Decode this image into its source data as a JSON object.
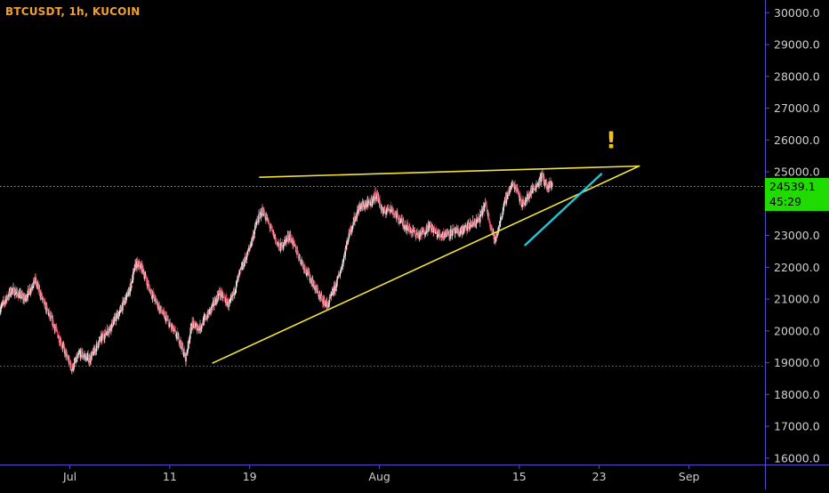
{
  "header": {
    "symbol": "BTCUSDT, 1h, KUCOIN"
  },
  "colors": {
    "background": "#000000",
    "axis": "#5b49c9",
    "candle_up": "#e8e8e8",
    "candle_down": "#e0475a",
    "trendline": "#f2e33a",
    "trendline_steep": "#25c5d9",
    "resistance_dotted": "#35d335",
    "support_dotted": "#c93acb",
    "alert": "#f2c21b",
    "price_tag_bg": "#1fdb00"
  },
  "price_tag": {
    "price": "24539.1",
    "countdown": "45:29"
  },
  "annotation": {
    "alert_mark": "!"
  },
  "chart_data": {
    "type": "candlestick",
    "title": "BTCUSDT, 1h, KUCOIN",
    "timeframe": "1h",
    "ylim": [
      15800,
      30400
    ],
    "y_ticks": [
      "30000.0",
      "29000.0",
      "28000.0",
      "27000.0",
      "26000.0",
      "25000.0",
      "24000.0",
      "23000.0",
      "22000.0",
      "21000.0",
      "20000.0",
      "19000.0",
      "18000.0",
      "17000.0",
      "16000.0"
    ],
    "y_tick_values": [
      30000,
      29000,
      28000,
      27000,
      26000,
      25000,
      24000,
      23000,
      22000,
      21000,
      20000,
      19000,
      18000,
      17000,
      16000
    ],
    "x_ticks": [
      "Jul",
      "11",
      "19",
      "Aug",
      "15",
      "23",
      "Sep"
    ],
    "x_tick_days": [
      1,
      11,
      19,
      32,
      46,
      54,
      63
    ],
    "x_range_days": [
      -6.0,
      70.6
    ],
    "price_path": [
      [
        -6,
        20700
      ],
      [
        -4.8,
        21300
      ],
      [
        -3.5,
        21000
      ],
      [
        -2.5,
        21600
      ],
      [
        -1.5,
        20800
      ],
      [
        -0.5,
        20100
      ],
      [
        0.3,
        19500
      ],
      [
        1.2,
        18800
      ],
      [
        2.0,
        19300
      ],
      [
        3.0,
        19100
      ],
      [
        4.0,
        19700
      ],
      [
        5.0,
        20100
      ],
      [
        6.0,
        20600
      ],
      [
        7.0,
        21300
      ],
      [
        7.6,
        22100
      ],
      [
        8.2,
        22000
      ],
      [
        9.0,
        21300
      ],
      [
        10.0,
        20700
      ],
      [
        11.0,
        20200
      ],
      [
        12.0,
        19700
      ],
      [
        12.6,
        19150
      ],
      [
        13.2,
        20200
      ],
      [
        14.0,
        20100
      ],
      [
        15.0,
        20600
      ],
      [
        16.0,
        21200
      ],
      [
        17.0,
        20800
      ],
      [
        18.0,
        21800
      ],
      [
        19.0,
        22600
      ],
      [
        19.7,
        23400
      ],
      [
        20.3,
        23800
      ],
      [
        21.0,
        23300
      ],
      [
        22.0,
        22600
      ],
      [
        23.0,
        23000
      ],
      [
        24.0,
        22300
      ],
      [
        25.0,
        21700
      ],
      [
        26.0,
        21100
      ],
      [
        26.8,
        20800
      ],
      [
        27.6,
        21400
      ],
      [
        28.2,
        22000
      ],
      [
        29.0,
        23100
      ],
      [
        30.0,
        23900
      ],
      [
        31.0,
        24000
      ],
      [
        31.7,
        24300
      ],
      [
        32.4,
        23700
      ],
      [
        33.0,
        23900
      ],
      [
        34.0,
        23500
      ],
      [
        35.0,
        23200
      ],
      [
        36.0,
        23000
      ],
      [
        37.0,
        23300
      ],
      [
        38.0,
        23000
      ],
      [
        39.0,
        23100
      ],
      [
        40.0,
        23100
      ],
      [
        41.0,
        23300
      ],
      [
        42.0,
        23500
      ],
      [
        42.6,
        24000
      ],
      [
        43.0,
        23500
      ],
      [
        43.6,
        22800
      ],
      [
        44.2,
        23600
      ],
      [
        44.7,
        24200
      ],
      [
        45.3,
        24600
      ],
      [
        45.8,
        24500
      ],
      [
        46.2,
        24000
      ],
      [
        46.7,
        24100
      ],
      [
        47.2,
        24400
      ],
      [
        47.8,
        24600
      ],
      [
        48.3,
        24900
      ],
      [
        48.8,
        24500
      ],
      [
        49.3,
        24600
      ]
    ],
    "horizontal_levels": [
      {
        "price": 24539.1,
        "style": "dotted",
        "color": "#35d335"
      },
      {
        "price": 18890,
        "style": "dotted",
        "color": "#c93acb"
      }
    ],
    "trendlines": [
      {
        "from": [
          20.0,
          24830
        ],
        "to": [
          58.0,
          25180
        ],
        "color": "#f2e33a",
        "role": "upper"
      },
      {
        "from": [
          15.3,
          18990
        ],
        "to": [
          58.0,
          25180
        ],
        "color": "#f2e33a",
        "role": "lower"
      },
      {
        "from": [
          46.6,
          22700
        ],
        "to": [
          54.2,
          24930
        ],
        "color": "#25c5d9",
        "role": "steep-support"
      }
    ],
    "alert_at": [
      55.2,
      25750
    ]
  }
}
